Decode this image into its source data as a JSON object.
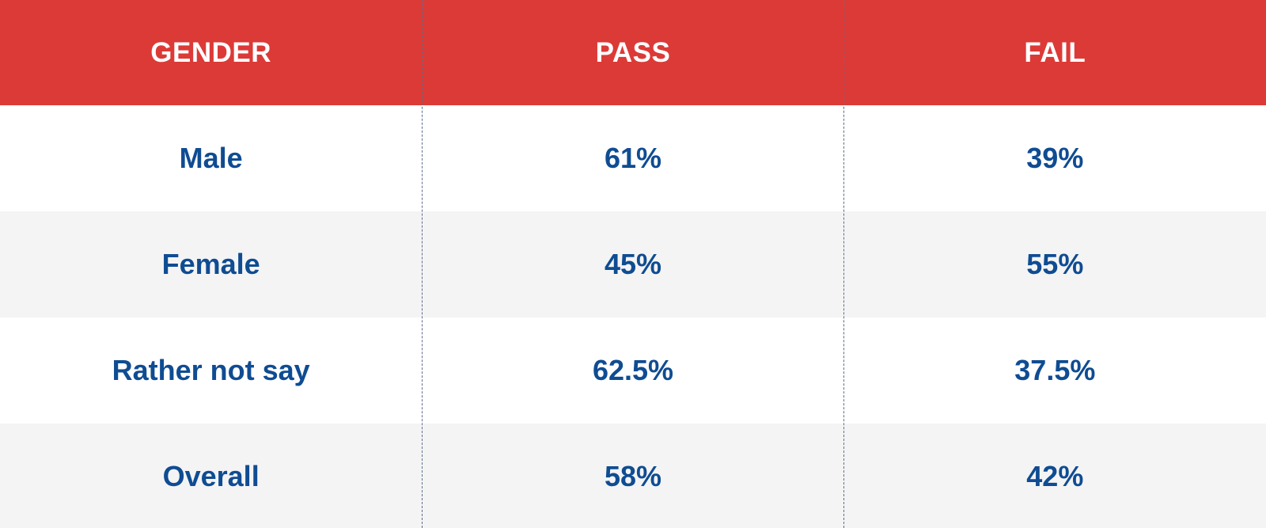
{
  "colors": {
    "header_background": "#dc3a37",
    "row_white": "#ffffff",
    "row_gray": "#f4f4f4",
    "text_blue": "#0f4c92",
    "header_text": "#ffffff",
    "divider": "#5a6e8a"
  },
  "table": {
    "headers": [
      "GENDER",
      "PASS",
      "FAIL"
    ],
    "rows": [
      [
        "Male",
        "61%",
        "39%"
      ],
      [
        "Female",
        "45%",
        "55%"
      ],
      [
        "Rather not say",
        "62.5%",
        "37.5%"
      ],
      [
        "Overall",
        "58%",
        "42%"
      ]
    ]
  }
}
